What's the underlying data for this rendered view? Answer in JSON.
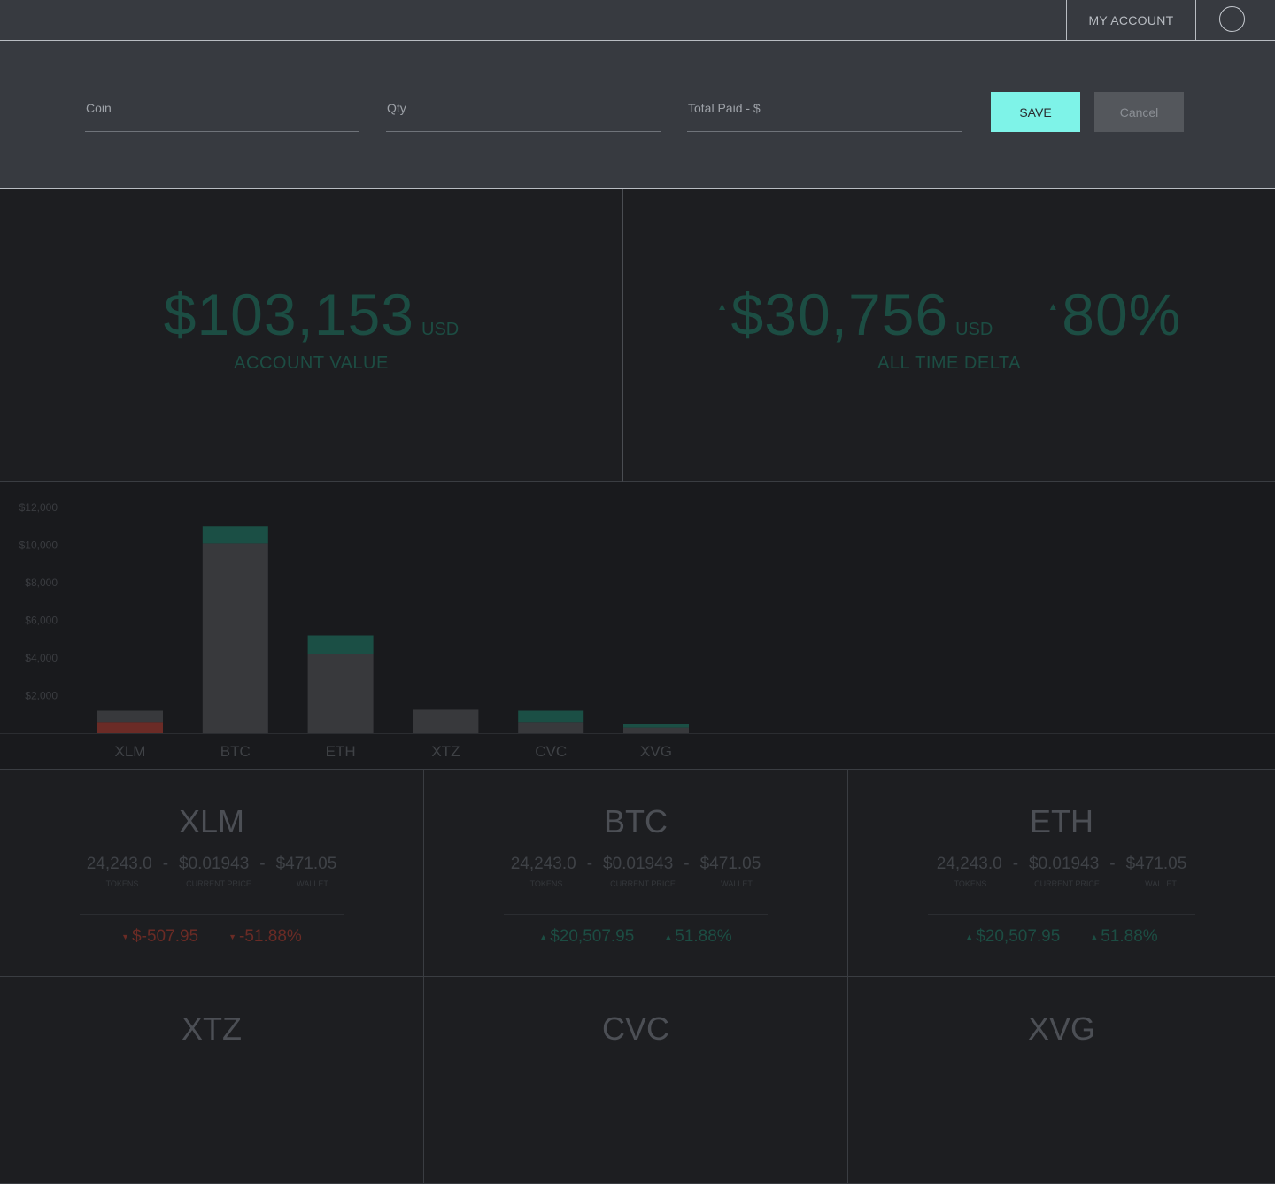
{
  "topbar": {
    "account_label": "MY ACCOUNT",
    "toggle_icon": "minus-circle-icon"
  },
  "form": {
    "coin_placeholder": "Coin",
    "qty_placeholder": "Qty",
    "total_placeholder": "Total Paid - $",
    "save_label": "SAVE",
    "cancel_label": "Cancel"
  },
  "stats": {
    "account_value": "$103,153",
    "account_unit": "USD",
    "account_label": "ACCOUNT VALUE",
    "delta_value": "$30,756",
    "delta_unit": "USD",
    "delta_percent": "80%",
    "delta_label": "ALL TIME DELTA",
    "up_symbol": "▲"
  },
  "chart_data": {
    "type": "bar",
    "stacked": true,
    "categories": [
      "XLM",
      "BTC",
      "ETH",
      "XTZ",
      "CVC",
      "XVG"
    ],
    "yticks": [
      "$12,000",
      "$10,000",
      "$8,000",
      "$6,000",
      "$4,000",
      "$2,000"
    ],
    "ytick_values": [
      12000,
      10000,
      8000,
      6000,
      4000,
      2000
    ],
    "ylim": [
      0,
      12000
    ],
    "base_values": [
      600,
      10100,
      4200,
      1250,
      600,
      300
    ],
    "cap_values": [
      600,
      900,
      1000,
      0,
      600,
      200
    ],
    "cap_sign": [
      "loss",
      "gain",
      "gain",
      "none",
      "gain",
      "gain"
    ],
    "colors": {
      "base": "#38393c",
      "gain": "#1b4f45",
      "loss": "#6b2b26"
    }
  },
  "cards": [
    {
      "coin": "XLM",
      "tokens": "24,243.0",
      "price": "$0.01943",
      "wallet": "$471.05",
      "delta": "$-507.95",
      "percent": "-51.88%",
      "dir": "down",
      "symbol": "▼"
    },
    {
      "coin": "BTC",
      "tokens": "24,243.0",
      "price": "$0.01943",
      "wallet": "$471.05",
      "delta": "$20,507.95",
      "percent": "51.88%",
      "dir": "up",
      "symbol": "▲"
    },
    {
      "coin": "ETH",
      "tokens": "24,243.0",
      "price": "$0.01943",
      "wallet": "$471.05",
      "delta": "$20,507.95",
      "percent": "51.88%",
      "dir": "up",
      "symbol": "▲"
    },
    {
      "coin": "XTZ"
    },
    {
      "coin": "CVC"
    },
    {
      "coin": "XVG"
    }
  ],
  "card_labels": {
    "separator": "-",
    "tokens": "TOKENS",
    "price": "CURRENT PRICE",
    "wallet": "WALLET"
  }
}
